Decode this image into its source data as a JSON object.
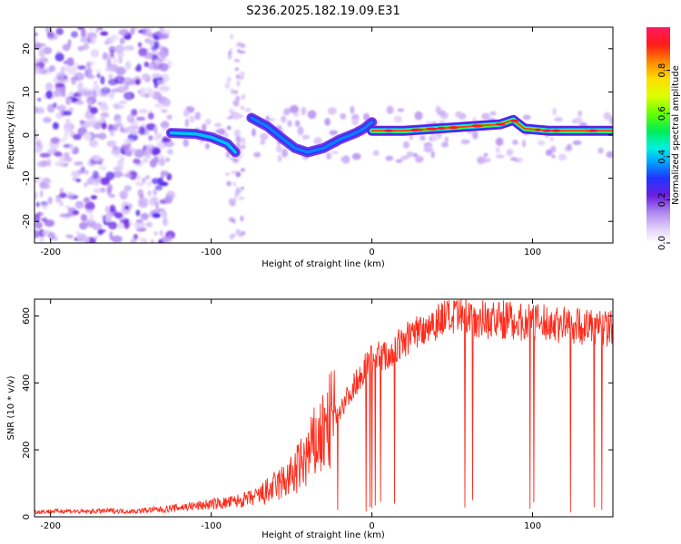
{
  "title": "S236.2025.182.19.09.E31",
  "chart_data": [
    {
      "type": "heatmap",
      "xlabel": "Height of straight line (km)",
      "ylabel": "Frequency (Hz)",
      "xlim": [
        -210,
        150
      ],
      "ylim": [
        -25,
        25
      ],
      "xticks": [
        -200,
        -100,
        0,
        100
      ],
      "yticks": [
        -20,
        -10,
        0,
        10,
        20
      ],
      "grid": false,
      "colorbar": {
        "label": "Normalized spectral amplitude",
        "range": [
          0,
          1
        ],
        "ticks": [
          0.0,
          0.2,
          0.4,
          0.6,
          0.8
        ]
      },
      "features": [
        {
          "name": "noise",
          "x_range": [
            -210,
            -125
          ],
          "y_range": [
            -25,
            25
          ],
          "amplitude": 0.1
        },
        {
          "name": "band-1",
          "x": [
            -125,
            -110,
            -100,
            -90,
            -85
          ],
          "y": [
            0.5,
            0.3,
            -0.5,
            -2,
            -4
          ],
          "amplitude": 0.35
        },
        {
          "name": "band-2",
          "x": [
            -75,
            -65,
            -55,
            -48,
            -40,
            -30,
            -20,
            -10,
            -5,
            0
          ],
          "y": [
            4,
            2,
            -1,
            -3,
            -4,
            -3,
            -1,
            0.5,
            1.5,
            3
          ],
          "amplitude": 0.3
        },
        {
          "name": "band-3",
          "x": [
            0,
            20,
            40,
            60,
            80,
            88,
            95,
            110,
            130,
            150
          ],
          "y": [
            1,
            1,
            1.5,
            2,
            2.5,
            3.5,
            1.5,
            1,
            1,
            1
          ],
          "amplitude": 0.95
        }
      ]
    },
    {
      "type": "line",
      "xlabel": "Height of straight line (km)",
      "ylabel": "SNR (10 * v/v)",
      "xlim": [
        -210,
        150
      ],
      "ylim": [
        0,
        650
      ],
      "xticks": [
        -200,
        -100,
        0,
        100
      ],
      "yticks": [
        0,
        200,
        400,
        600
      ],
      "grid": false,
      "series": [
        {
          "color": "#ff2a1a",
          "x": [
            -210,
            -200,
            -190,
            -180,
            -170,
            -160,
            -150,
            -140,
            -130,
            -120,
            -110,
            -100,
            -90,
            -80,
            -70,
            -60,
            -50,
            -45,
            -40,
            -35,
            -30,
            -25,
            -20,
            -15,
            -10,
            -5,
            0,
            5,
            10,
            15,
            20,
            25,
            30,
            35,
            40,
            45,
            50,
            55,
            60,
            65,
            70,
            75,
            80,
            85,
            90,
            95,
            100,
            110,
            120,
            130,
            140,
            150
          ],
          "y": [
            15,
            16,
            18,
            15,
            17,
            18,
            16,
            20,
            22,
            28,
            32,
            38,
            42,
            50,
            62,
            90,
            120,
            150,
            180,
            220,
            250,
            290,
            320,
            360,
            400,
            440,
            480,
            480,
            480,
            500,
            525,
            545,
            560,
            570,
            585,
            595,
            590,
            595,
            600,
            595,
            590,
            585,
            590,
            588,
            585,
            580,
            580,
            578,
            575,
            570,
            565,
            560
          ]
        }
      ]
    }
  ],
  "colors": {
    "snr_line": "#ff2a1a",
    "noise_purple": "#7a4ce6",
    "background": "#ffffff"
  }
}
